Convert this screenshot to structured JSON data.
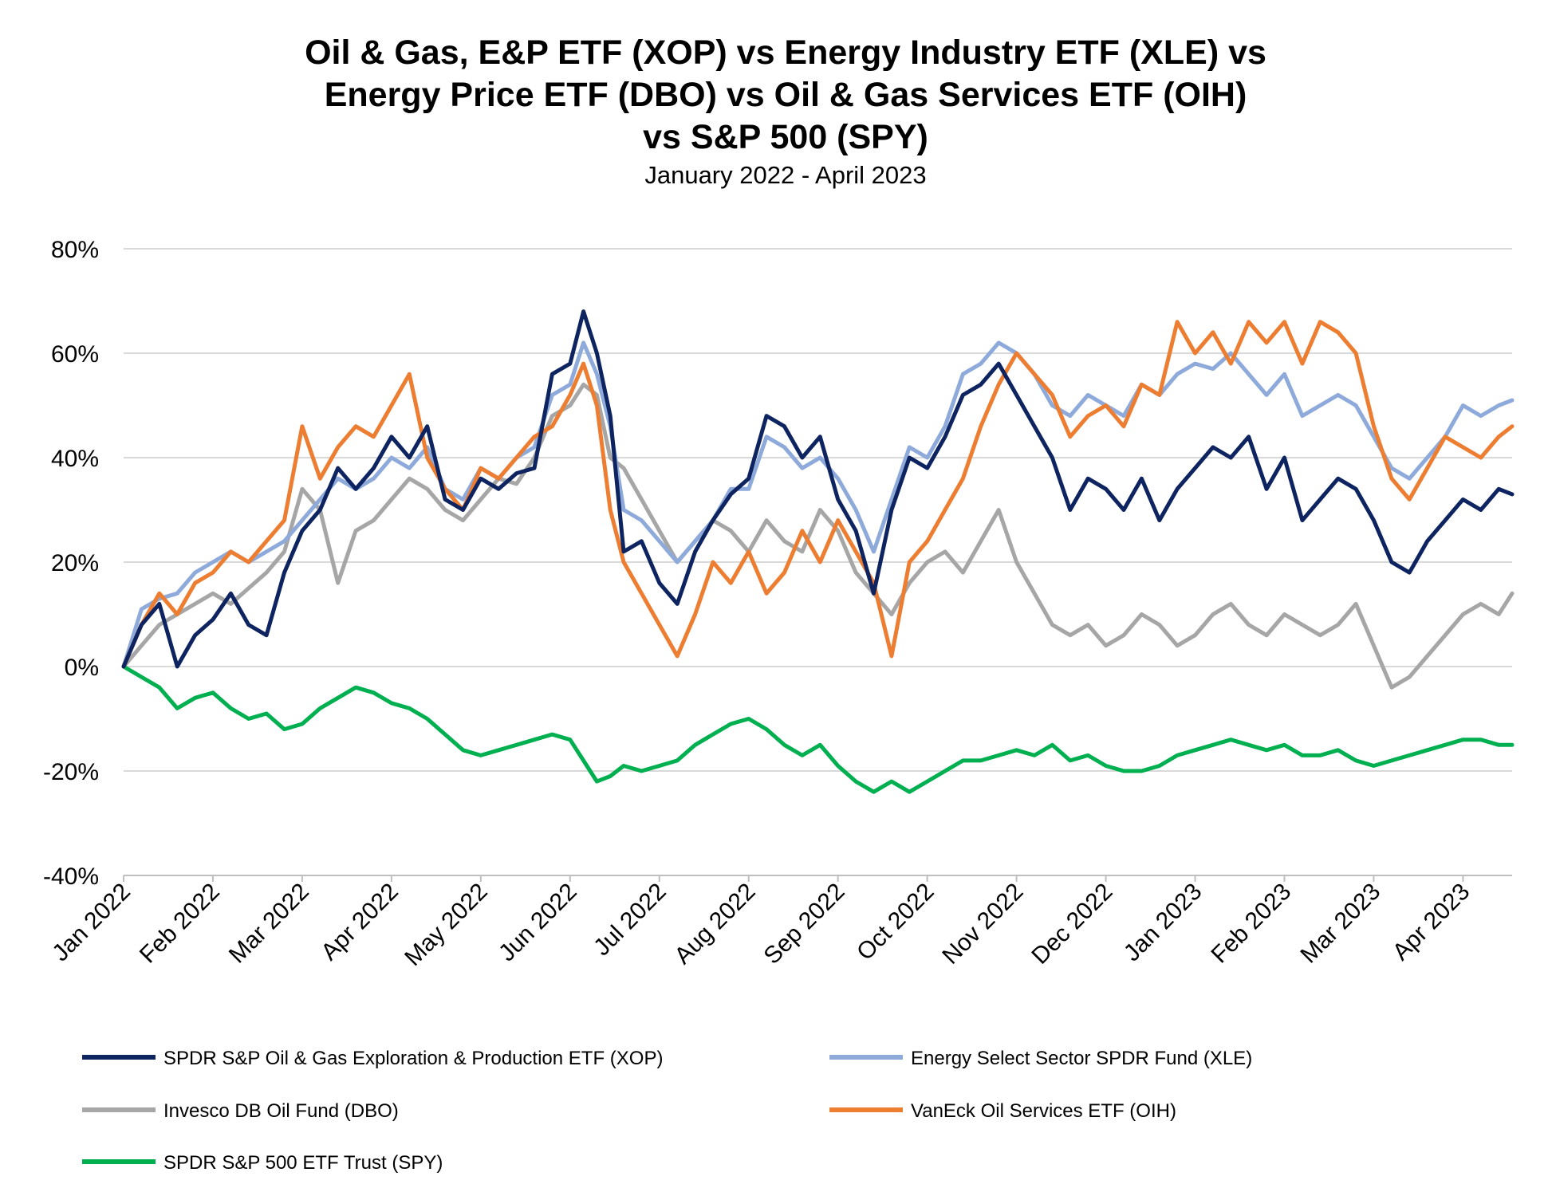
{
  "chart_data": {
    "type": "line",
    "title_lines": [
      "Oil & Gas, E&P ETF (XOP) vs Energy Industry ETF (XLE) vs",
      "Energy Price ETF (DBO) vs Oil & Gas Services ETF (OIH)",
      "vs S&P 500 (SPY)"
    ],
    "subtitle": "January 2022 - April 2023",
    "x_tick_labels": [
      "Jan 2022",
      "Feb 2022",
      "Mar 2022",
      "Apr 2022",
      "May 2022",
      "Jun 2022",
      "Jul 2022",
      "Aug 2022",
      "Sep 2022",
      "Oct 2022",
      "Nov 2022",
      "Dec 2022",
      "Jan 2023",
      "Feb 2023",
      "Mar 2023",
      "Apr 2023"
    ],
    "y_tick_labels": [
      "80%",
      "60%",
      "40%",
      "20%",
      "0%",
      "-20%",
      "-40%"
    ],
    "y_ticks": [
      80,
      60,
      40,
      20,
      0,
      -20,
      -40
    ],
    "ylim": [
      -40,
      80
    ],
    "x_unit": "months since Jan 2022",
    "xlim": [
      0,
      15.55
    ],
    "grid": true,
    "legend_position": "bottom",
    "series": [
      {
        "name": "SPDR S&P Oil & Gas Exploration & Production ETF (XOP)",
        "color": "#0d2461",
        "x": [
          0,
          0.2,
          0.4,
          0.6,
          0.8,
          1.0,
          1.2,
          1.4,
          1.6,
          1.8,
          2.0,
          2.2,
          2.4,
          2.6,
          2.8,
          3.0,
          3.2,
          3.4,
          3.6,
          3.8,
          4.0,
          4.2,
          4.4,
          4.6,
          4.8,
          5.0,
          5.15,
          5.3,
          5.45,
          5.6,
          5.8,
          6.0,
          6.2,
          6.4,
          6.6,
          6.8,
          7.0,
          7.2,
          7.4,
          7.6,
          7.8,
          8.0,
          8.2,
          8.4,
          8.6,
          8.8,
          9.0,
          9.2,
          9.4,
          9.6,
          9.8,
          10.0,
          10.2,
          10.4,
          10.6,
          10.8,
          11.0,
          11.2,
          11.4,
          11.6,
          11.8,
          12.0,
          12.2,
          12.4,
          12.6,
          12.8,
          13.0,
          13.2,
          13.4,
          13.6,
          13.8,
          14.0,
          14.2,
          14.4,
          14.6,
          14.8,
          15.0,
          15.2,
          15.4,
          15.55
        ],
        "y": [
          0,
          8,
          12,
          0,
          6,
          9,
          14,
          8,
          6,
          18,
          26,
          30,
          38,
          34,
          38,
          44,
          40,
          46,
          32,
          30,
          36,
          34,
          37,
          38,
          56,
          58,
          68,
          60,
          48,
          22,
          24,
          16,
          12,
          22,
          28,
          33,
          36,
          48,
          46,
          40,
          44,
          32,
          26,
          14,
          30,
          40,
          38,
          44,
          52,
          54,
          58,
          52,
          46,
          40,
          30,
          36,
          34,
          30,
          36,
          28,
          34,
          38,
          42,
          40,
          44,
          34,
          40,
          28,
          32,
          36,
          34,
          28,
          20,
          18,
          24,
          28,
          32,
          30,
          34,
          33
        ],
        "labels": []
      },
      {
        "name": "Energy Select Sector SPDR Fund (XLE)",
        "color": "#8eaadb",
        "x": [
          0,
          0.2,
          0.4,
          0.6,
          0.8,
          1.0,
          1.2,
          1.4,
          1.6,
          1.8,
          2.0,
          2.2,
          2.4,
          2.6,
          2.8,
          3.0,
          3.2,
          3.4,
          3.6,
          3.8,
          4.0,
          4.2,
          4.4,
          4.6,
          4.8,
          5.0,
          5.15,
          5.3,
          5.45,
          5.6,
          5.8,
          6.0,
          6.2,
          6.4,
          6.6,
          6.8,
          7.0,
          7.2,
          7.4,
          7.6,
          7.8,
          8.0,
          8.2,
          8.4,
          8.6,
          8.8,
          9.0,
          9.2,
          9.4,
          9.6,
          9.8,
          10.0,
          10.2,
          10.4,
          10.6,
          10.8,
          11.0,
          11.2,
          11.4,
          11.6,
          11.8,
          12.0,
          12.2,
          12.4,
          12.6,
          12.8,
          13.0,
          13.2,
          13.4,
          13.6,
          13.8,
          14.0,
          14.2,
          14.4,
          14.6,
          14.8,
          15.0,
          15.2,
          15.4,
          15.55
        ],
        "y": [
          0,
          11,
          13,
          14,
          18,
          20,
          22,
          20,
          22,
          24,
          28,
          32,
          36,
          34,
          36,
          40,
          38,
          42,
          34,
          32,
          38,
          36,
          40,
          42,
          52,
          54,
          62,
          56,
          46,
          30,
          28,
          24,
          20,
          24,
          28,
          34,
          34,
          44,
          42,
          38,
          40,
          36,
          30,
          22,
          32,
          42,
          40,
          46,
          56,
          58,
          62,
          60,
          56,
          50,
          48,
          52,
          50,
          48,
          54,
          52,
          56,
          58,
          57,
          60,
          56,
          52,
          56,
          48,
          50,
          52,
          50,
          44,
          38,
          36,
          40,
          44,
          50,
          48,
          50,
          51
        ],
        "labels": []
      },
      {
        "name": "Invesco DB Oil Fund (DBO)",
        "color": "#a6a6a6",
        "x": [
          0,
          0.2,
          0.4,
          0.6,
          0.8,
          1.0,
          1.2,
          1.4,
          1.6,
          1.8,
          2.0,
          2.2,
          2.4,
          2.6,
          2.8,
          3.0,
          3.2,
          3.4,
          3.6,
          3.8,
          4.0,
          4.2,
          4.4,
          4.6,
          4.8,
          5.0,
          5.15,
          5.3,
          5.45,
          5.6,
          5.8,
          6.0,
          6.2,
          6.4,
          6.6,
          6.8,
          7.0,
          7.2,
          7.4,
          7.6,
          7.8,
          8.0,
          8.2,
          8.4,
          8.6,
          8.8,
          9.0,
          9.2,
          9.4,
          9.6,
          9.8,
          10.0,
          10.2,
          10.4,
          10.6,
          10.8,
          11.0,
          11.2,
          11.4,
          11.6,
          11.8,
          12.0,
          12.2,
          12.4,
          12.6,
          12.8,
          13.0,
          13.2,
          13.4,
          13.6,
          13.8,
          14.0,
          14.2,
          14.4,
          14.6,
          14.8,
          15.0,
          15.2,
          15.4,
          15.55
        ],
        "y": [
          0,
          4,
          8,
          10,
          12,
          14,
          12,
          15,
          18,
          22,
          34,
          30,
          16,
          26,
          28,
          32,
          36,
          34,
          30,
          28,
          32,
          36,
          35,
          40,
          48,
          50,
          54,
          52,
          40,
          38,
          32,
          26,
          20,
          24,
          28,
          26,
          22,
          28,
          24,
          22,
          30,
          26,
          18,
          14,
          10,
          16,
          20,
          22,
          18,
          24,
          30,
          20,
          14,
          8,
          6,
          8,
          4,
          6,
          10,
          8,
          4,
          6,
          10,
          12,
          8,
          6,
          10,
          8,
          6,
          8,
          12,
          4,
          -4,
          -2,
          2,
          6,
          10,
          12,
          10,
          14
        ],
        "labels": []
      },
      {
        "name": "VanEck Oil Services ETF (OIH)",
        "color": "#ed7d31",
        "x": [
          0,
          0.2,
          0.4,
          0.6,
          0.8,
          1.0,
          1.2,
          1.4,
          1.6,
          1.8,
          2.0,
          2.2,
          2.4,
          2.6,
          2.8,
          3.0,
          3.2,
          3.4,
          3.6,
          3.8,
          4.0,
          4.2,
          4.4,
          4.6,
          4.8,
          5.0,
          5.15,
          5.3,
          5.45,
          5.6,
          5.8,
          6.0,
          6.2,
          6.4,
          6.6,
          6.8,
          7.0,
          7.2,
          7.4,
          7.6,
          7.8,
          8.0,
          8.2,
          8.4,
          8.6,
          8.8,
          9.0,
          9.2,
          9.4,
          9.6,
          9.8,
          10.0,
          10.2,
          10.4,
          10.6,
          10.8,
          11.0,
          11.2,
          11.4,
          11.6,
          11.8,
          12.0,
          12.2,
          12.4,
          12.6,
          12.8,
          13.0,
          13.2,
          13.4,
          13.6,
          13.8,
          14.0,
          14.2,
          14.4,
          14.6,
          14.8,
          15.0,
          15.2,
          15.4,
          15.55
        ],
        "y": [
          0,
          8,
          14,
          10,
          16,
          18,
          22,
          20,
          24,
          28,
          46,
          36,
          42,
          46,
          44,
          50,
          56,
          40,
          34,
          30,
          38,
          36,
          40,
          44,
          46,
          52,
          58,
          50,
          30,
          20,
          14,
          8,
          2,
          10,
          20,
          16,
          22,
          14,
          18,
          26,
          20,
          28,
          22,
          16,
          2,
          20,
          24,
          30,
          36,
          46,
          54,
          60,
          56,
          52,
          44,
          48,
          50,
          46,
          54,
          52,
          66,
          60,
          64,
          58,
          66,
          62,
          66,
          58,
          66,
          64,
          60,
          46,
          36,
          32,
          38,
          44,
          42,
          40,
          44,
          46
        ],
        "labels": []
      },
      {
        "name": "SPDR S&P 500 ETF Trust (SPY)",
        "color": "#00b050",
        "x": [
          0,
          0.2,
          0.4,
          0.6,
          0.8,
          1.0,
          1.2,
          1.4,
          1.6,
          1.8,
          2.0,
          2.2,
          2.4,
          2.6,
          2.8,
          3.0,
          3.2,
          3.4,
          3.6,
          3.8,
          4.0,
          4.2,
          4.4,
          4.6,
          4.8,
          5.0,
          5.15,
          5.3,
          5.45,
          5.6,
          5.8,
          6.0,
          6.2,
          6.4,
          6.6,
          6.8,
          7.0,
          7.2,
          7.4,
          7.6,
          7.8,
          8.0,
          8.2,
          8.4,
          8.6,
          8.8,
          9.0,
          9.2,
          9.4,
          9.6,
          9.8,
          10.0,
          10.2,
          10.4,
          10.6,
          10.8,
          11.0,
          11.2,
          11.4,
          11.6,
          11.8,
          12.0,
          12.2,
          12.4,
          12.6,
          12.8,
          13.0,
          13.2,
          13.4,
          13.6,
          13.8,
          14.0,
          14.2,
          14.4,
          14.6,
          14.8,
          15.0,
          15.2,
          15.4,
          15.55
        ],
        "y": [
          0,
          -2,
          -4,
          -8,
          -6,
          -5,
          -8,
          -10,
          -9,
          -12,
          -11,
          -8,
          -6,
          -4,
          -5,
          -7,
          -8,
          -10,
          -13,
          -16,
          -17,
          -16,
          -15,
          -14,
          -13,
          -14,
          -18,
          -22,
          -21,
          -19,
          -20,
          -19,
          -18,
          -15,
          -13,
          -11,
          -10,
          -12,
          -15,
          -17,
          -15,
          -19,
          -22,
          -24,
          -22,
          -24,
          -22,
          -20,
          -18,
          -18,
          -17,
          -16,
          -17,
          -15,
          -18,
          -17,
          -19,
          -20,
          -20,
          -19,
          -17,
          -16,
          -15,
          -14,
          -15,
          -16,
          -15,
          -17,
          -17,
          -16,
          -18,
          -19,
          -18,
          -17,
          -16,
          -15,
          -14,
          -14,
          -15,
          -15
        ],
        "labels": []
      }
    ]
  }
}
